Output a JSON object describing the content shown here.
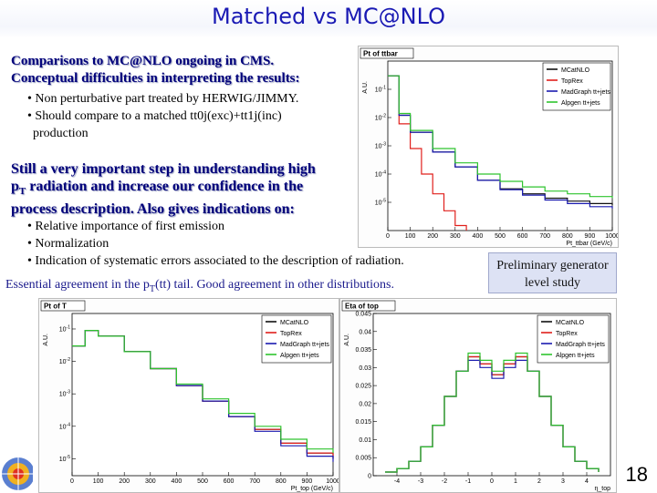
{
  "slide": {
    "title": "Matched vs MC@NLO",
    "heading1_line1": "Comparisons to MC@NLO ongoing in CMS.",
    "heading1_line2": "Conceptual difficulties in interpreting the results:",
    "bullets1": [
      "Non perturbative part treated by HERWIG/JIMMY.",
      "Should compare to a matched tt0j(exc)+tt1j(inc)",
      "production"
    ],
    "heading2_line1": "Still a very important step in understanding high",
    "heading2_line2_pre": "p",
    "heading2_line2_sub": "T",
    "heading2_line2_post": " radiation and increase our confidence in the",
    "heading2_line3": "process description. Also gives indications on:",
    "bullets2": [
      "Relative importance of first emission",
      "Normalization",
      "Indication of systematic errors associated to the description of radiation."
    ],
    "bullet_char": "•",
    "note_pre": "Essential agreement in the p",
    "note_sub": "T",
    "note_post": "(tt) tail. Good agreement in other distributions.",
    "prelim_line1": "Preliminary generator",
    "prelim_line2": "level study",
    "page_number": "18"
  },
  "chart_data": [
    {
      "type": "line",
      "title": "Pt of ttbar",
      "ylabel": "A.U.",
      "xlabel": "Pt_ttbar (GeV/c)",
      "log_y": true,
      "xlim": [
        0,
        1000
      ],
      "ylim": [
        1e-06,
        1
      ],
      "yticks": [
        "10^-1",
        "10^-2",
        "10^-3",
        "10^-4",
        "10^-5"
      ],
      "xticks": [
        "0",
        "100",
        "200",
        "300",
        "400",
        "500",
        "600",
        "700",
        "800",
        "900",
        "1000"
      ],
      "legend": "top-right",
      "series": [
        {
          "name": "MCatNLO",
          "color": "#111111",
          "x": [
            0,
            50,
            100,
            200,
            300,
            400,
            500,
            600,
            700,
            800,
            900,
            1000
          ],
          "values": [
            0.3,
            0.012,
            0.003,
            0.0006,
            0.00018,
            6e-05,
            3e-05,
            2e-05,
            1.4e-05,
            1.1e-05,
            9e-06,
            8e-06
          ]
        },
        {
          "name": "TopRex",
          "color": "#e0201c",
          "x": [
            0,
            50,
            100,
            150,
            200,
            250,
            300,
            350
          ],
          "values": [
            0.3,
            0.006,
            0.0008,
            0.0001,
            2e-05,
            5e-06,
            1.5e-06,
            1e-06
          ]
        },
        {
          "name": "MadGraph tt+jets",
          "color": "#1b1bb0",
          "x": [
            0,
            50,
            100,
            200,
            300,
            400,
            500,
            600,
            700,
            800,
            900,
            1000
          ],
          "values": [
            0.3,
            0.012,
            0.003,
            0.0006,
            0.00018,
            6e-05,
            2.8e-05,
            1.8e-05,
            1.2e-05,
            9e-06,
            7e-06,
            6e-06
          ]
        },
        {
          "name": "Alpgen tt+jets",
          "color": "#2ec42e",
          "x": [
            0,
            50,
            100,
            200,
            300,
            400,
            500,
            600,
            700,
            800,
            900,
            1000
          ],
          "values": [
            0.3,
            0.014,
            0.0035,
            0.0008,
            0.00025,
            0.0001,
            5.5e-05,
            3.5e-05,
            2.5e-05,
            2e-05,
            1.6e-05,
            1.4e-05
          ]
        }
      ]
    },
    {
      "type": "line",
      "title": "Pt of T",
      "ylabel": "A.U.",
      "xlabel": "Pt_top (GeV/c)",
      "log_y": true,
      "xlim": [
        0,
        1000
      ],
      "ylim": [
        3e-06,
        0.3
      ],
      "yticks": [
        "10^-1",
        "10^-2",
        "10^-3",
        "10^-4",
        "10^-5"
      ],
      "xticks": [
        "0",
        "100",
        "200",
        "300",
        "400",
        "500",
        "600",
        "700",
        "800",
        "900",
        "1000"
      ],
      "legend": "top-right",
      "series": [
        {
          "name": "MCatNLO",
          "color": "#111111",
          "x": [
            0,
            50,
            100,
            200,
            300,
            400,
            500,
            600,
            700,
            800,
            900,
            1000
          ],
          "values": [
            0.03,
            0.09,
            0.06,
            0.02,
            0.006,
            0.0018,
            0.0006,
            0.0002,
            8e-05,
            3e-05,
            1.5e-05,
            1e-05
          ]
        },
        {
          "name": "TopRex",
          "color": "#e0201c",
          "x": [
            0,
            50,
            100,
            200,
            300,
            400,
            500,
            600,
            700,
            800,
            900,
            1000
          ],
          "values": [
            0.03,
            0.09,
            0.06,
            0.02,
            0.006,
            0.0018,
            0.0006,
            0.0002,
            8e-05,
            3e-05,
            1.5e-05,
            1e-05
          ]
        },
        {
          "name": "MadGraph tt+jets",
          "color": "#1b1bb0",
          "x": [
            0,
            50,
            100,
            200,
            300,
            400,
            500,
            600,
            700,
            800,
            900,
            1000
          ],
          "values": [
            0.03,
            0.09,
            0.06,
            0.02,
            0.006,
            0.0018,
            0.0006,
            0.0002,
            7e-05,
            2.5e-05,
            1.2e-05,
            8e-06
          ]
        },
        {
          "name": "Alpgen tt+jets",
          "color": "#2ec42e",
          "x": [
            0,
            50,
            100,
            200,
            300,
            400,
            500,
            600,
            700,
            800,
            900,
            1000
          ],
          "values": [
            0.03,
            0.09,
            0.06,
            0.02,
            0.006,
            0.002,
            0.0007,
            0.00025,
            0.0001,
            4e-05,
            2e-05,
            1.5e-05
          ]
        }
      ]
    },
    {
      "type": "line",
      "title": "Eta of top",
      "ylabel": "A.U.",
      "xlabel": "η_top",
      "xlim": [
        -5,
        5
      ],
      "ylim": [
        0,
        0.045
      ],
      "yticks": [
        "0.045",
        "0.04",
        "0.035",
        "0.03",
        "0.025",
        "0.02",
        "0.015",
        "0.01",
        "0.005",
        "0"
      ],
      "xticks": [
        "-4",
        "-3",
        "-2",
        "-1",
        "0",
        "1",
        "2",
        "3",
        "4"
      ],
      "legend": "top-right",
      "series": [
        {
          "name": "MCatNLO",
          "color": "#111111",
          "x": [
            -4.5,
            -4,
            -3.5,
            -3,
            -2.5,
            -2,
            -1.5,
            -1,
            -0.5,
            0,
            0.5,
            1,
            1.5,
            2,
            2.5,
            3,
            3.5,
            4,
            4.5
          ],
          "values": [
            0.001,
            0.002,
            0.004,
            0.008,
            0.014,
            0.022,
            0.029,
            0.033,
            0.031,
            0.028,
            0.031,
            0.033,
            0.029,
            0.022,
            0.014,
            0.008,
            0.004,
            0.002,
            0.001
          ]
        },
        {
          "name": "TopRex",
          "color": "#e0201c",
          "x": [
            -4.5,
            -4,
            -3.5,
            -3,
            -2.5,
            -2,
            -1.5,
            -1,
            -0.5,
            0,
            0.5,
            1,
            1.5,
            2,
            2.5,
            3,
            3.5,
            4,
            4.5
          ],
          "values": [
            0.001,
            0.002,
            0.004,
            0.008,
            0.014,
            0.022,
            0.029,
            0.033,
            0.031,
            0.028,
            0.031,
            0.033,
            0.029,
            0.022,
            0.014,
            0.008,
            0.004,
            0.002,
            0.001
          ]
        },
        {
          "name": "MadGraph tt+jets",
          "color": "#1b1bb0",
          "x": [
            -4.5,
            -4,
            -3.5,
            -3,
            -2.5,
            -2,
            -1.5,
            -1,
            -0.5,
            0,
            0.5,
            1,
            1.5,
            2,
            2.5,
            3,
            3.5,
            4,
            4.5
          ],
          "values": [
            0.001,
            0.002,
            0.004,
            0.008,
            0.014,
            0.022,
            0.029,
            0.032,
            0.03,
            0.027,
            0.03,
            0.032,
            0.029,
            0.022,
            0.014,
            0.008,
            0.004,
            0.002,
            0.001
          ]
        },
        {
          "name": "Alpgen tt+jets",
          "color": "#2ec42e",
          "x": [
            -4.5,
            -4,
            -3.5,
            -3,
            -2.5,
            -2,
            -1.5,
            -1,
            -0.5,
            0,
            0.5,
            1,
            1.5,
            2,
            2.5,
            3,
            3.5,
            4,
            4.5
          ],
          "values": [
            0.001,
            0.002,
            0.004,
            0.008,
            0.014,
            0.022,
            0.029,
            0.034,
            0.032,
            0.029,
            0.032,
            0.034,
            0.029,
            0.022,
            0.014,
            0.008,
            0.004,
            0.002,
            0.001
          ]
        }
      ]
    }
  ]
}
